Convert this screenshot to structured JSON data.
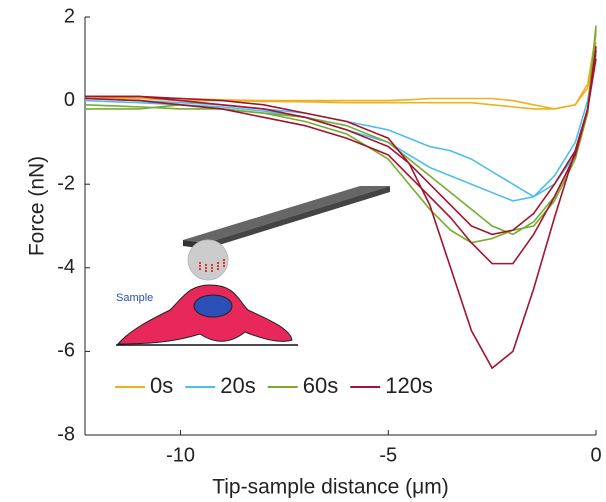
{
  "chart_data": {
    "type": "line",
    "xlabel": "Tip-sample distance (μm)",
    "ylabel": "Force (nN)",
    "annotation": "Sample",
    "x": [
      -12.3,
      -11,
      -10,
      -9,
      -8,
      -7,
      -6,
      -5,
      -4.5,
      -4,
      -3.5,
      -3,
      -2.5,
      -2,
      -1.5,
      -1,
      -0.5,
      -0.2,
      0
    ],
    "series": [
      {
        "name": "0s",
        "color": "#EDB120",
        "values": [
          0.1,
          0.05,
          0,
          0,
          -0.02,
          -0.03,
          -0.05,
          -0.05,
          -0.05,
          -0.05,
          -0.05,
          -0.05,
          -0.1,
          -0.15,
          -0.2,
          -0.2,
          -0.1,
          0.3,
          1.4
        ]
      },
      {
        "color": "#EDB120",
        "values": [
          0.05,
          0.05,
          0.05,
          0.02,
          0,
          0,
          0,
          0,
          0.02,
          0.05,
          0.05,
          0.05,
          0.05,
          0,
          -0.1,
          -0.2,
          -0.1,
          0.4,
          1.6
        ]
      },
      {
        "name": "20s",
        "color": "#4DBEEE",
        "values": [
          0.05,
          0,
          -0.05,
          -0.1,
          -0.2,
          -0.3,
          -0.5,
          -0.7,
          -0.9,
          -1.1,
          -1.2,
          -1.4,
          -1.7,
          -2.0,
          -2.3,
          -2.0,
          -1.3,
          -0.2,
          1.1
        ]
      },
      {
        "color": "#4DBEEE",
        "values": [
          0,
          -0.05,
          -0.1,
          -0.15,
          -0.25,
          -0.4,
          -0.7,
          -1.0,
          -1.3,
          -1.6,
          -1.8,
          -2.0,
          -2.2,
          -2.4,
          -2.3,
          -1.8,
          -1.0,
          0,
          1.2
        ]
      },
      {
        "name": "60s",
        "color": "#77AC30",
        "values": [
          -0.1,
          -0.15,
          -0.2,
          -0.2,
          -0.3,
          -0.4,
          -0.6,
          -1.0,
          -1.4,
          -1.8,
          -2.2,
          -2.6,
          -3.0,
          -3.2,
          -2.9,
          -2.3,
          -1.3,
          -0.2,
          1.8
        ]
      },
      {
        "color": "#77AC30",
        "values": [
          -0.2,
          -0.2,
          -0.1,
          -0.2,
          -0.3,
          -0.5,
          -0.8,
          -1.4,
          -2.0,
          -2.6,
          -3.1,
          -3.4,
          -3.3,
          -3.1,
          -3.0,
          -2.4,
          -1.4,
          -0.3,
          1.7
        ]
      },
      {
        "name": "120s",
        "color": "#A2142F",
        "values": [
          0.1,
          0.1,
          0.05,
          0,
          -0.1,
          -0.3,
          -0.5,
          -0.9,
          -1.5,
          -2.5,
          -4.0,
          -5.5,
          -6.4,
          -6.0,
          -4.5,
          -2.8,
          -1.2,
          -0.2,
          1.2
        ]
      },
      {
        "color": "#A2142F",
        "values": [
          0.05,
          0,
          -0.1,
          -0.2,
          -0.4,
          -0.6,
          -0.9,
          -1.3,
          -1.8,
          -2.3,
          -2.8,
          -3.4,
          -3.9,
          -3.9,
          -3.2,
          -2.3,
          -1.3,
          -0.2,
          1.0
        ]
      },
      {
        "color": "#A2142F",
        "values": [
          0.1,
          0.1,
          0,
          -0.1,
          -0.2,
          -0.4,
          -0.7,
          -1.1,
          -1.5,
          -2.0,
          -2.5,
          -3.0,
          -3.2,
          -3.1,
          -2.7,
          -2.0,
          -1.2,
          -0.2,
          1.3
        ]
      }
    ],
    "xlim": [
      -12.3,
      0
    ],
    "ylim": [
      -8,
      2
    ],
    "xticks": [
      -10,
      -5,
      0
    ],
    "yticks": [
      -8,
      -6,
      -4,
      -2,
      0,
      2
    ],
    "grid": false,
    "legend": "lower-left"
  }
}
